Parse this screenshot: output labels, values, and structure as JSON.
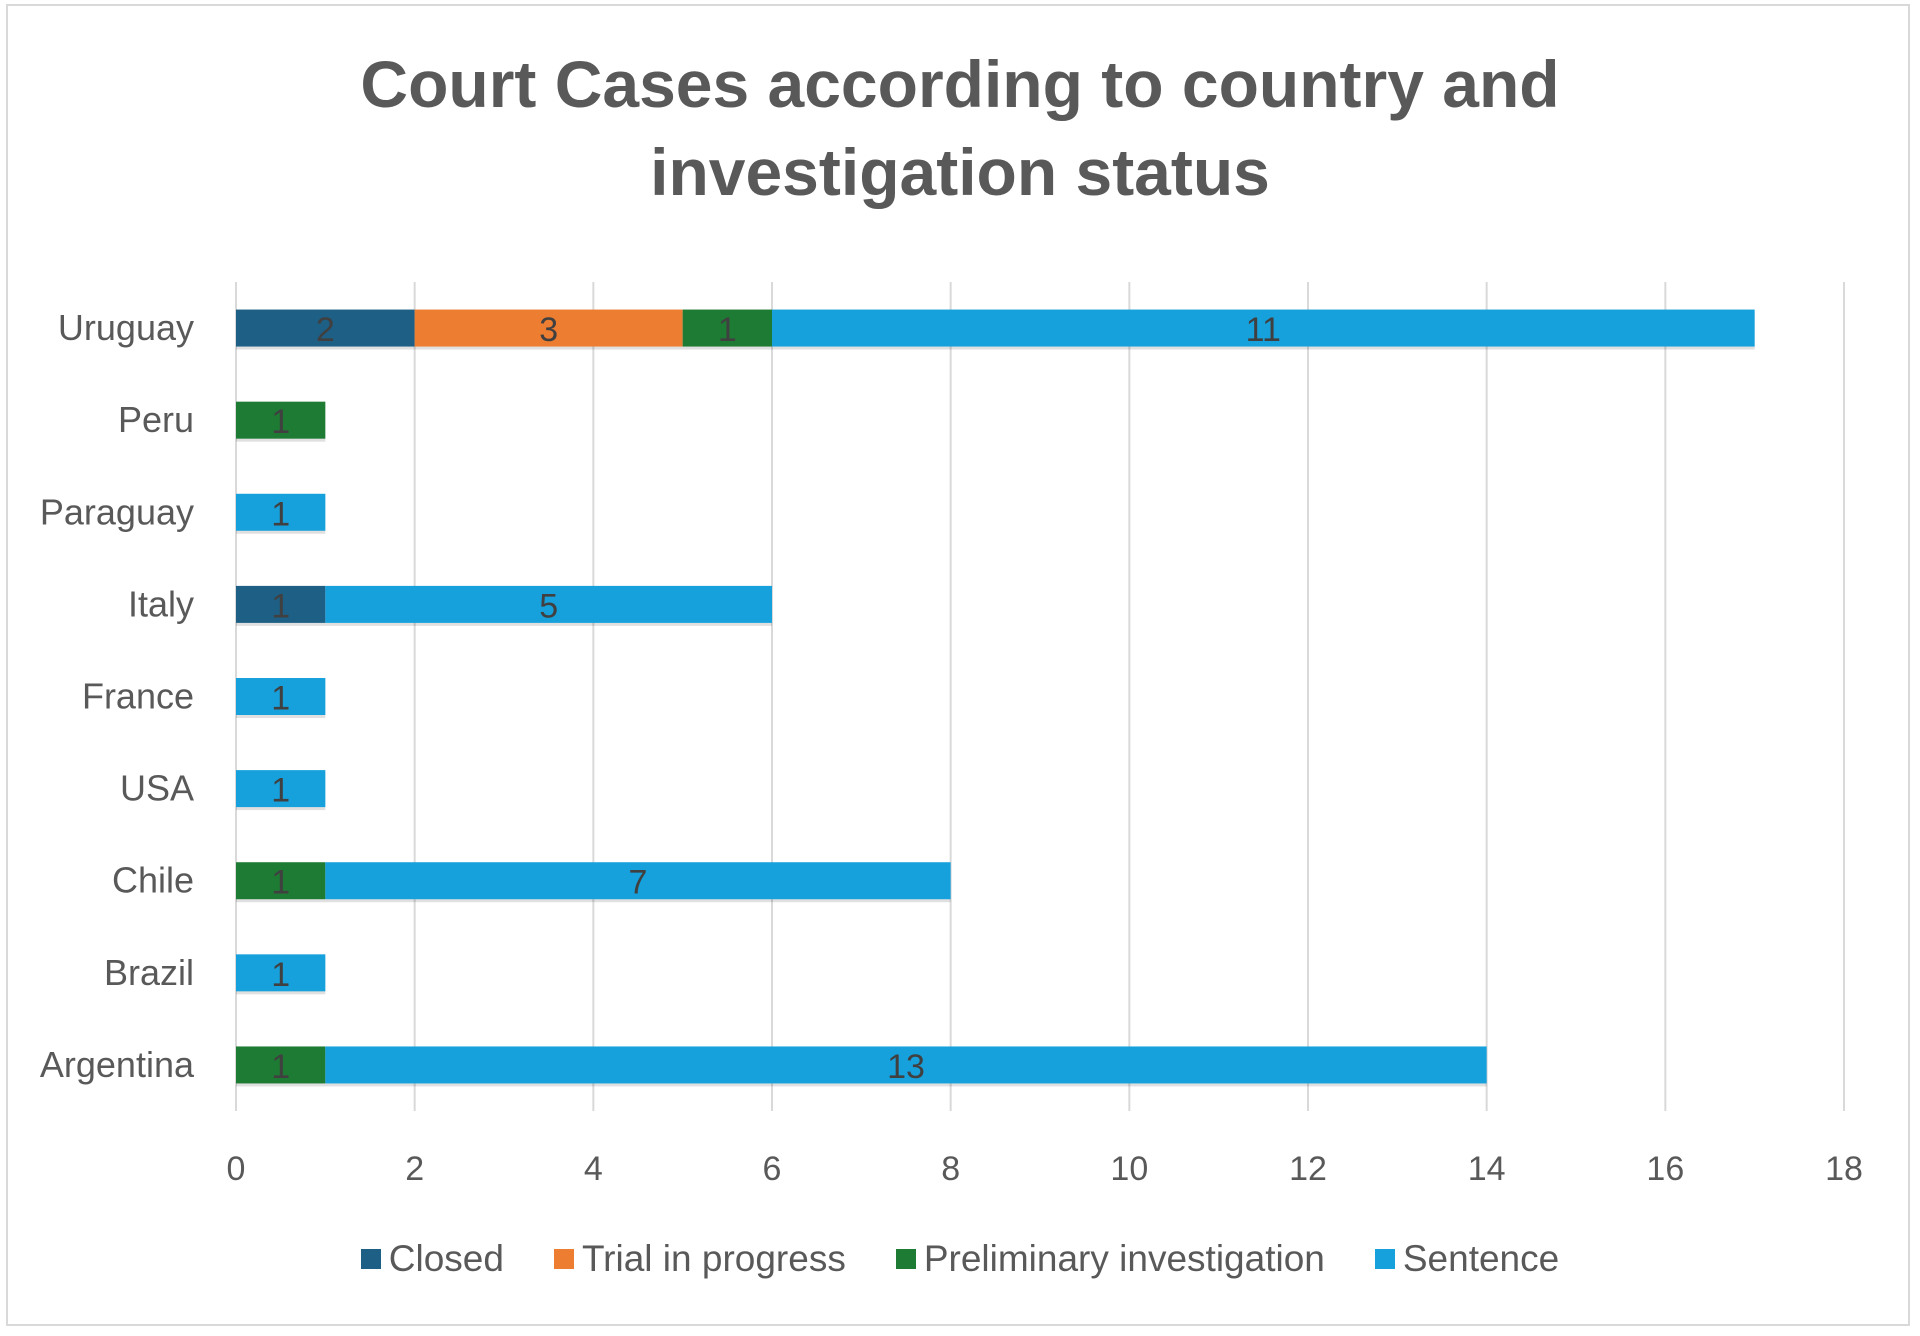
{
  "chart_data": {
    "type": "bar",
    "orientation": "horizontal",
    "stacked": true,
    "title_lines": [
      "Court Cases according to country and",
      "investigation status"
    ],
    "categories": [
      "Argentina",
      "Brazil",
      "Chile",
      "USA",
      "France",
      "Italy",
      "Paraguay",
      "Peru",
      "Uruguay"
    ],
    "series": [
      {
        "name": "Closed",
        "color": "#1d5f85",
        "values": [
          0,
          0,
          0,
          0,
          0,
          1,
          0,
          0,
          2
        ]
      },
      {
        "name": "Trial in progress",
        "color": "#ed7d31",
        "values": [
          0,
          0,
          0,
          0,
          0,
          0,
          0,
          0,
          3
        ]
      },
      {
        "name": "Preliminary investigation",
        "color": "#1e7b34",
        "values": [
          1,
          0,
          1,
          0,
          0,
          0,
          0,
          1,
          1
        ]
      },
      {
        "name": "Sentence",
        "color": "#17a1dc",
        "values": [
          13,
          1,
          7,
          1,
          1,
          5,
          1,
          0,
          11
        ]
      }
    ],
    "xlim": [
      0,
      18
    ],
    "xticks": [
      0,
      2,
      4,
      6,
      8,
      10,
      12,
      14,
      16,
      18
    ],
    "xlabel": "",
    "ylabel": "",
    "grid": "vertical",
    "legend_position": "bottom",
    "data_labels": true
  }
}
